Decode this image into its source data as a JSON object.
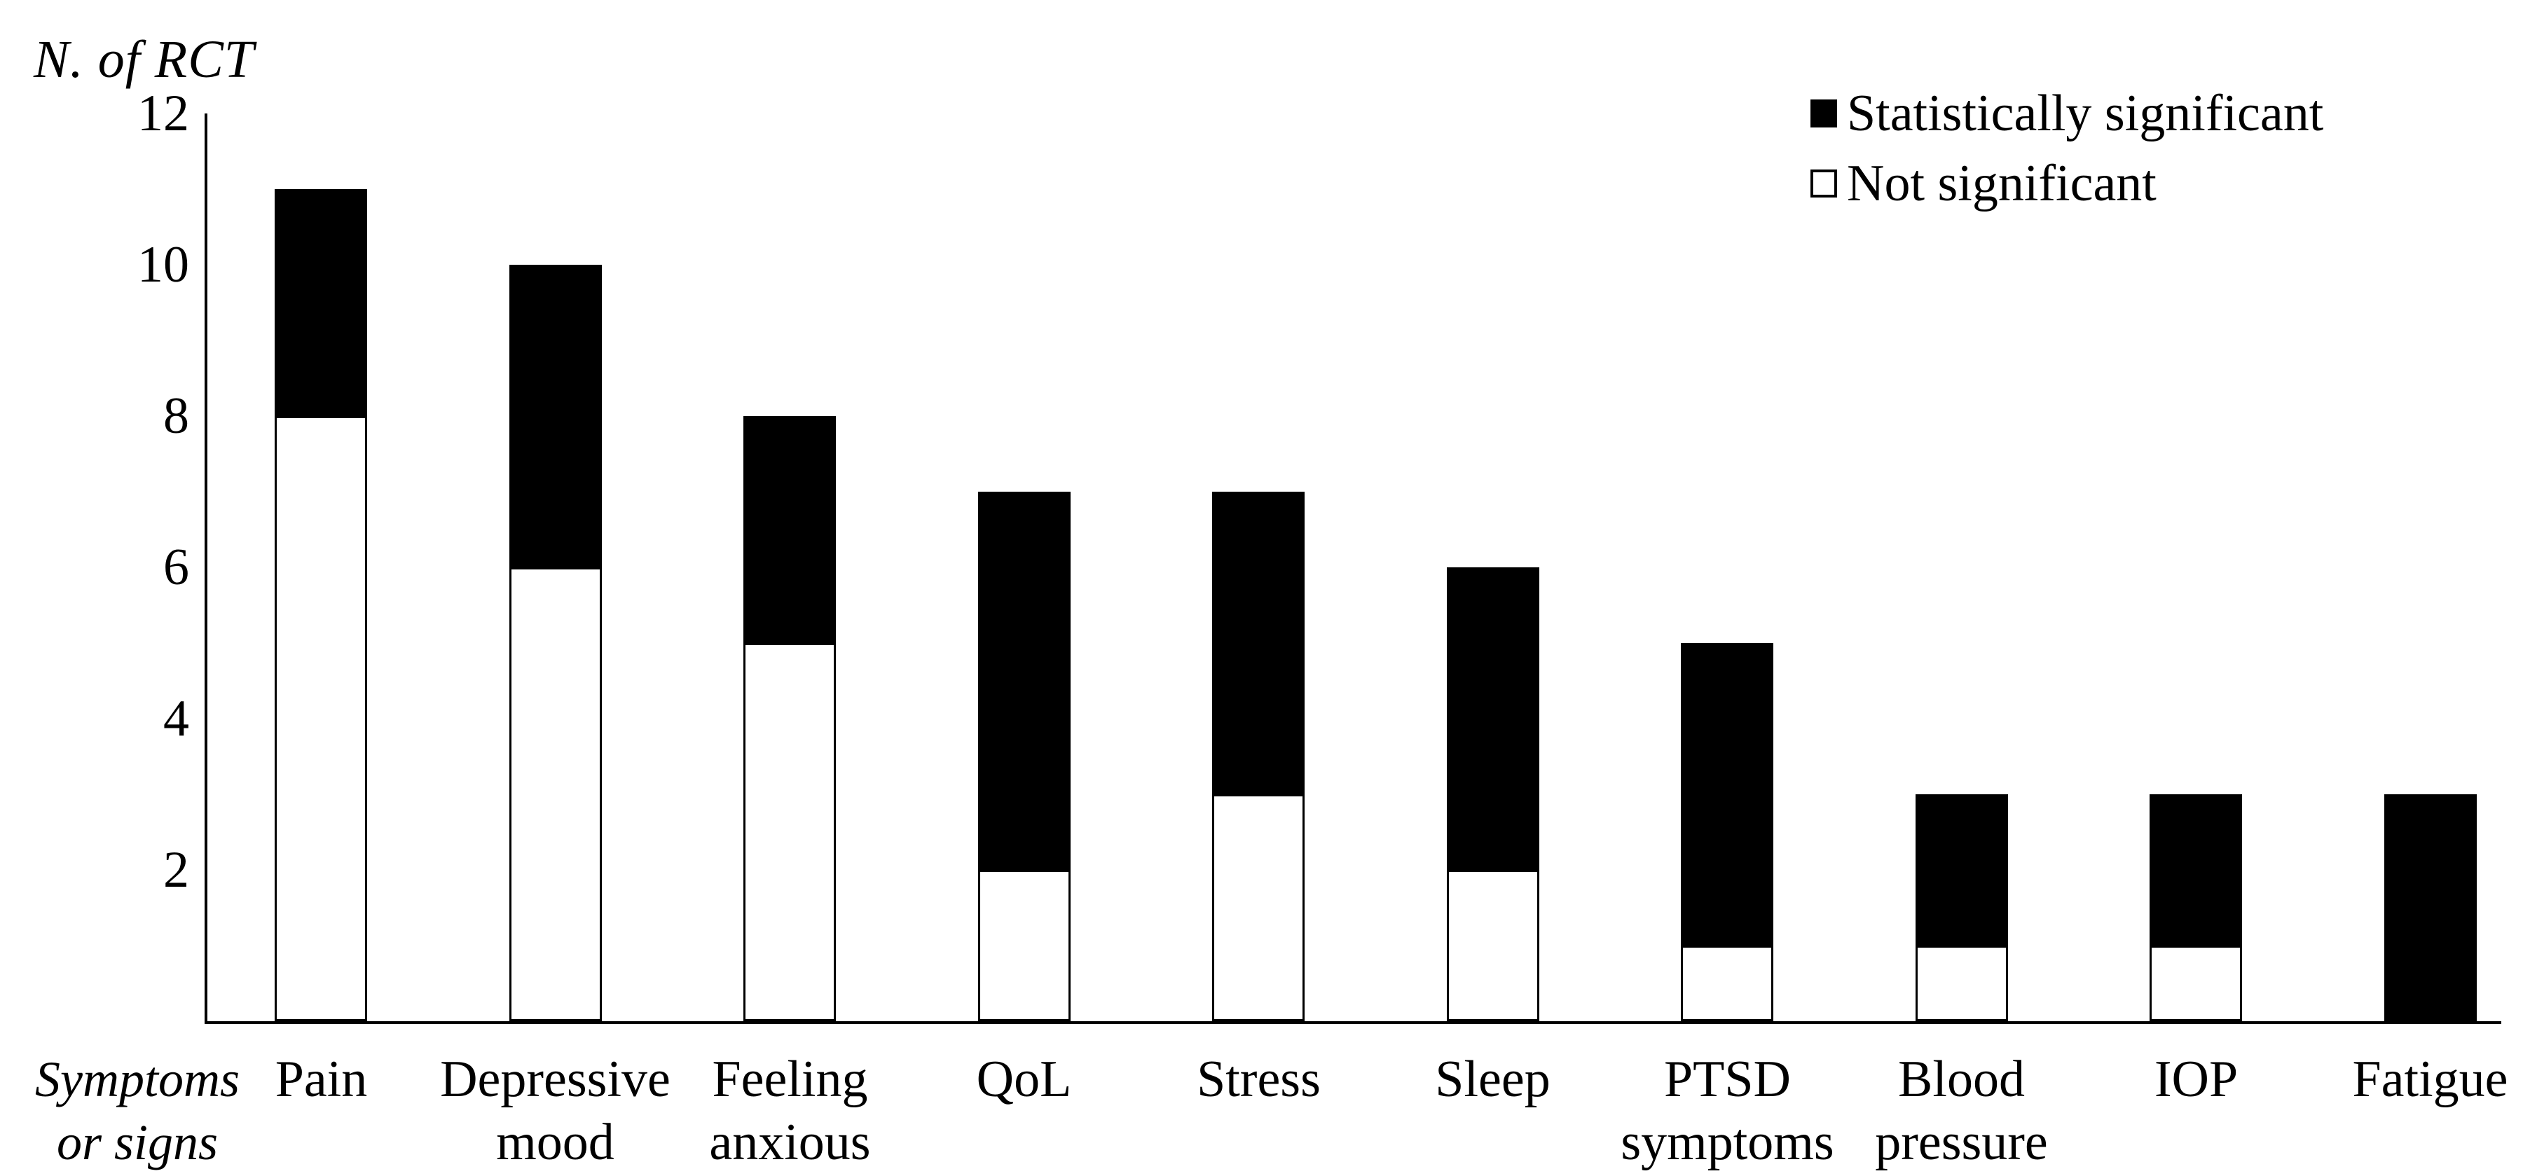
{
  "figure_title": "",
  "y_axis": {
    "title": "N. of RCT",
    "ticks": [
      2,
      4,
      6,
      8,
      10,
      12
    ],
    "min": 0,
    "max": 12
  },
  "x_axis": {
    "title_line1": "Symptoms",
    "title_line2": "or signs",
    "title": "Symptoms or signs"
  },
  "legend": {
    "items": [
      {
        "label": "Statistically significant",
        "swatch": "filled-black-square"
      },
      {
        "label": "Not significant",
        "swatch": "open-white-square"
      }
    ]
  },
  "colors": {
    "significant": "#000000",
    "not_significant": "#ffffff",
    "outline": "#000000",
    "background": "#ffffff"
  },
  "chart_data": {
    "type": "bar",
    "stacked": true,
    "title": "",
    "ylabel": "N. of RCT",
    "xlabel": "Symptoms or signs",
    "ylim": [
      0,
      12
    ],
    "yticks": [
      2,
      4,
      6,
      8,
      10,
      12
    ],
    "grid": false,
    "legend_position": "top-right",
    "categories": [
      "Pain",
      "Depressive mood",
      "Feeling anxious",
      "QoL",
      "Stress",
      "Sleep",
      "PTSD symptoms",
      "Blood pressure",
      "IOP",
      "Fatigue"
    ],
    "category_lines": [
      [
        "Pain"
      ],
      [
        "Depressive",
        "mood"
      ],
      [
        "Feeling",
        "anxious"
      ],
      [
        "QoL"
      ],
      [
        "Stress"
      ],
      [
        "Sleep"
      ],
      [
        "PTSD",
        "symptoms"
      ],
      [
        "Blood",
        "pressure"
      ],
      [
        "IOP"
      ],
      [
        "Fatigue"
      ]
    ],
    "series": [
      {
        "name": "Statistically significant",
        "color": "#000000",
        "values": [
          3,
          4,
          3,
          5,
          4,
          4,
          4,
          2,
          2,
          3
        ]
      },
      {
        "name": "Not significant",
        "color": "#ffffff",
        "values": [
          8,
          6,
          5,
          2,
          3,
          2,
          1,
          1,
          1,
          0
        ]
      }
    ],
    "totals": [
      11,
      10,
      8,
      7,
      7,
      6,
      5,
      3,
      3,
      3
    ]
  }
}
